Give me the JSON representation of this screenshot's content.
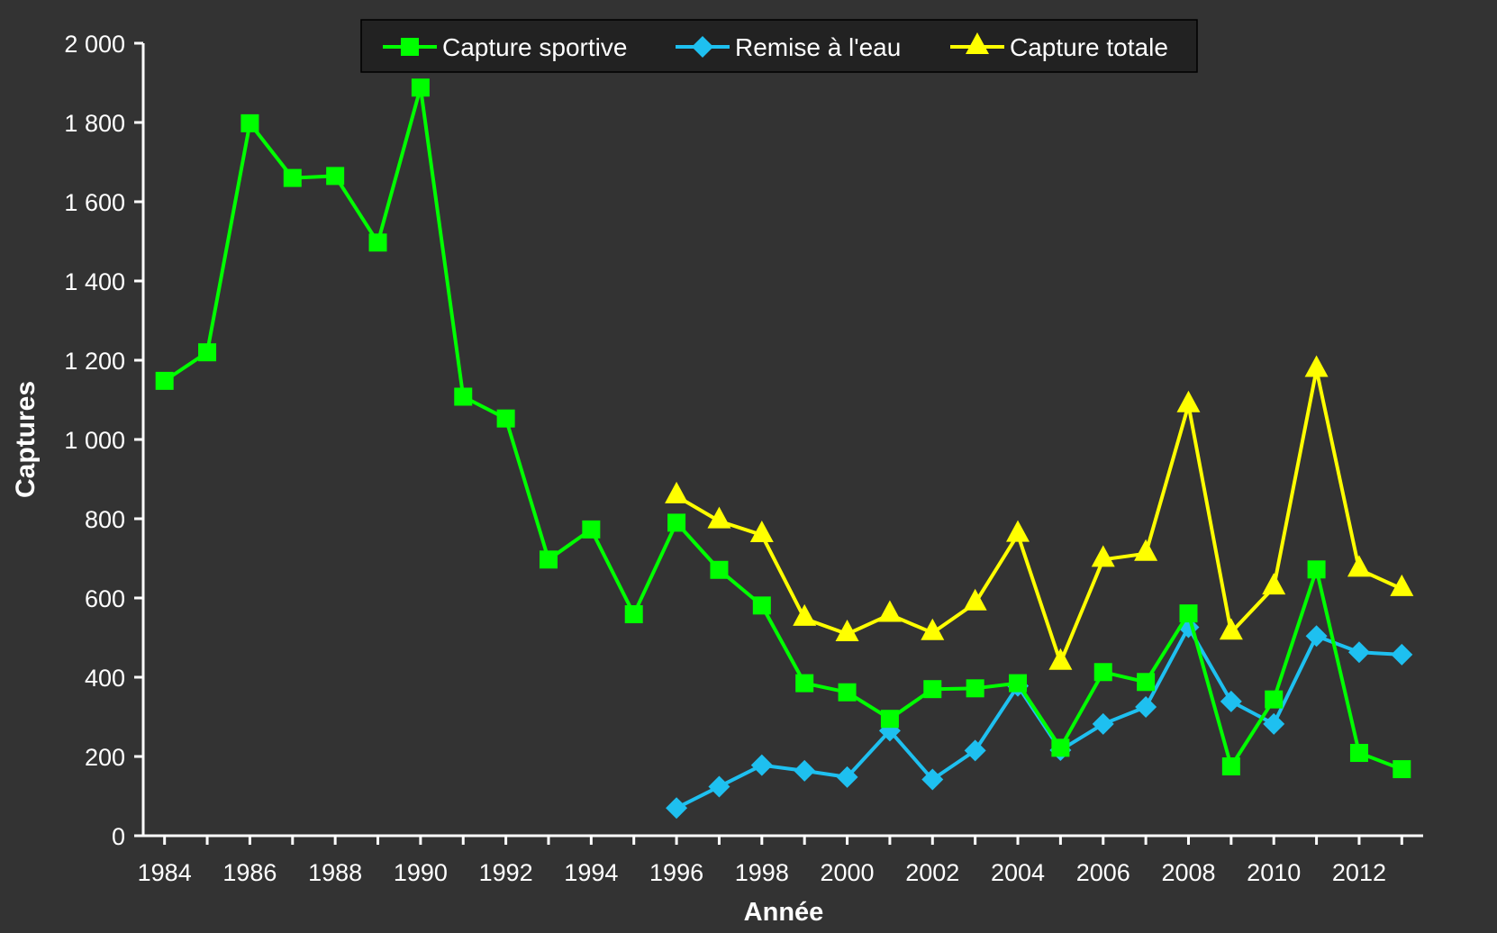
{
  "chart_data": {
    "type": "line",
    "title": "",
    "xlabel": "Année",
    "ylabel": "Captures",
    "xlim": [
      1983.5,
      2013.5
    ],
    "ylim": [
      0,
      2000
    ],
    "x_ticks": [
      1984,
      1986,
      1988,
      1990,
      1992,
      1994,
      1996,
      1998,
      2000,
      2002,
      2004,
      2006,
      2008,
      2010,
      2012
    ],
    "y_ticks": [
      0,
      200,
      400,
      600,
      800,
      1000,
      1200,
      1400,
      1600,
      1800,
      2000
    ],
    "y_tick_labels": [
      "0",
      "200",
      "400",
      "600",
      "800",
      "1 000",
      "1 200",
      "1 400",
      "1 600",
      "1 800",
      "2 000"
    ],
    "grid": false,
    "legend_position": "top-center",
    "background_color": "#333333",
    "series": [
      {
        "name": "Capture sportive",
        "color": "#00ff00",
        "marker": "square",
        "x": [
          1984,
          1985,
          1986,
          1987,
          1988,
          1989,
          1990,
          1991,
          1992,
          1993,
          1994,
          1995,
          1996,
          1997,
          1998,
          1999,
          2000,
          2001,
          2002,
          2003,
          2004,
          2005,
          2006,
          2007,
          2008,
          2009,
          2010,
          2011,
          2012,
          2013
        ],
        "values": [
          1148,
          1220,
          1798,
          1660,
          1665,
          1497,
          1888,
          1108,
          1053,
          697,
          773,
          559,
          790,
          671,
          581,
          385,
          362,
          295,
          370,
          372,
          385,
          222,
          413,
          388,
          561,
          175,
          344,
          672,
          209,
          168
        ]
      },
      {
        "name": "Remise à l'eau",
        "color": "#1ec0f0",
        "marker": "diamond",
        "x": [
          1996,
          1997,
          1998,
          1999,
          2000,
          2001,
          2002,
          2003,
          2004,
          2005,
          2006,
          2007,
          2008,
          2009,
          2010,
          2011,
          2012,
          2013
        ],
        "values": [
          70,
          124,
          178,
          164,
          148,
          265,
          142,
          215,
          378,
          216,
          282,
          325,
          526,
          339,
          282,
          504,
          463,
          457
        ]
      },
      {
        "name": "Capture totale",
        "color": "#ffff00",
        "marker": "triangle",
        "x": [
          1996,
          1997,
          1998,
          1999,
          2000,
          2001,
          2002,
          2003,
          2004,
          2005,
          2006,
          2007,
          2008,
          2009,
          2010,
          2011,
          2012,
          2013
        ],
        "values": [
          857,
          794,
          759,
          548,
          509,
          558,
          512,
          587,
          760,
          437,
          697,
          712,
          1087,
          513,
          627,
          1176,
          672,
          623
        ]
      }
    ]
  }
}
